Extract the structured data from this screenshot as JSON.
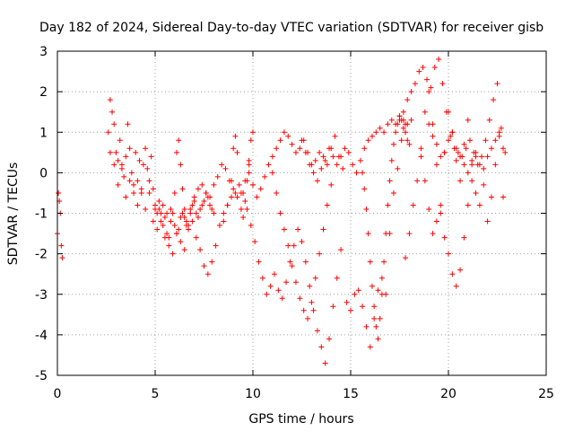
{
  "chart_data": {
    "type": "scatter",
    "title": "Day 182 of 2024, Sidereal Day-to-day VTEC variation (SDTVAR) for receiver gisb",
    "xlabel": "GPS time / hours",
    "ylabel": "SDTVAR / TECUs",
    "xlim": [
      0,
      25
    ],
    "ylim": [
      -5,
      3
    ],
    "xticks": [
      0,
      5,
      10,
      15,
      20,
      25
    ],
    "yticks": [
      -5,
      -4,
      -3,
      -2,
      -1,
      0,
      1,
      2,
      3
    ],
    "xtick_labels": [
      "0",
      "5",
      "10",
      "15",
      "20",
      "25"
    ],
    "ytick_labels": [
      "-5",
      "-4",
      "-3",
      "-2",
      "-1",
      "0",
      "1",
      "2",
      "3"
    ],
    "grid": true,
    "marker": "+",
    "color": "#ff0000",
    "series": [
      {
        "name": "s1",
        "x": [
          0.0,
          0.05,
          0.1,
          0.15,
          0.2,
          0.25
        ],
        "y": [
          -1.5,
          -0.5,
          -0.7,
          -1.0,
          -1.8,
          -2.1
        ]
      },
      {
        "name": "s2",
        "x": [
          2.6,
          2.7,
          2.8,
          2.9,
          3.0,
          3.1,
          3.2,
          3.3,
          3.4,
          3.5,
          3.6,
          3.7,
          3.8,
          3.9,
          4.0,
          4.1,
          4.2,
          4.3,
          4.4,
          4.5,
          4.6,
          4.7,
          4.8,
          4.9,
          5.0,
          5.1,
          5.2,
          5.3,
          5.4,
          5.5,
          5.6,
          5.7,
          5.8,
          5.9,
          6.0,
          6.1,
          6.2,
          6.3,
          6.4,
          6.5,
          6.6,
          6.7,
          6.8,
          6.9,
          7.0,
          7.1,
          7.2,
          7.3,
          7.4,
          7.5,
          7.6,
          7.7,
          7.8,
          7.9,
          8.0
        ],
        "y": [
          1.0,
          1.8,
          1.5,
          1.2,
          0.5,
          0.3,
          0.8,
          0.2,
          -0.1,
          0.4,
          1.2,
          0.6,
          0.0,
          -0.3,
          0.5,
          -0.2,
          0.3,
          -0.5,
          0.2,
          0.6,
          0.1,
          -0.2,
          0.4,
          -0.4,
          -0.8,
          -1.0,
          -0.9,
          -1.2,
          -1.3,
          -1.1,
          -1.5,
          -1.6,
          -1.2,
          -1.0,
          -1.3,
          -1.5,
          -1.4,
          -1.1,
          -1.0,
          -0.9,
          -1.2,
          -1.3,
          -1.0,
          -0.8,
          -0.7,
          -1.0,
          -1.1,
          -0.9,
          -0.8,
          -0.7,
          -0.5,
          -0.6,
          -0.8,
          -0.9,
          -1.0
        ]
      },
      {
        "name": "s3",
        "x": [
          2.7,
          2.9,
          3.1,
          3.3,
          3.5,
          3.7,
          3.9,
          4.1,
          4.3,
          4.5,
          4.7,
          4.9,
          5.1,
          5.3,
          5.5,
          5.7,
          5.9,
          6.1,
          6.3,
          6.5,
          6.7,
          6.9,
          7.1,
          7.3,
          7.5,
          7.7,
          7.9,
          8.1,
          8.3,
          8.5,
          8.7,
          8.9,
          9.1
        ],
        "y": [
          0.5,
          0.2,
          -0.3,
          0.1,
          -0.6,
          -0.2,
          -0.5,
          -0.8,
          -0.4,
          -0.9,
          -0.5,
          -1.2,
          -1.4,
          -1.0,
          -1.6,
          -1.8,
          -2.0,
          -1.5,
          -1.7,
          -1.9,
          -1.4,
          -1.2,
          -1.6,
          -1.9,
          -2.3,
          -2.5,
          -2.2,
          -1.8,
          -1.3,
          -1.0,
          -0.8,
          -0.6,
          -0.5
        ]
      },
      {
        "name": "s4",
        "x": [
          5.0,
          5.2,
          5.4,
          5.6,
          5.8,
          6.0,
          6.1,
          6.2,
          6.3,
          6.4,
          6.5,
          6.6,
          6.8,
          7.0,
          7.2,
          7.4,
          7.6,
          7.8,
          8.0,
          8.2,
          8.4,
          8.6,
          8.8,
          9.0,
          9.2,
          9.4,
          9.6,
          9.8,
          10.0
        ],
        "y": [
          -0.9,
          -0.7,
          -0.8,
          -1.0,
          -0.9,
          -0.5,
          0.5,
          0.8,
          0.2,
          -0.4,
          -1.1,
          -1.3,
          -0.9,
          -0.6,
          -0.4,
          -0.3,
          -0.5,
          -0.6,
          -0.3,
          -0.1,
          0.2,
          0.1,
          -0.2,
          -0.4,
          -0.6,
          -0.5,
          -0.2,
          0.0,
          -0.3
        ]
      },
      {
        "name": "s5",
        "x": [
          8.5,
          8.7,
          8.9,
          9.0,
          9.1,
          9.2,
          9.3,
          9.4,
          9.5,
          9.6,
          9.7,
          9.8,
          9.9,
          10.0
        ],
        "y": [
          -1.2,
          -0.8,
          -0.2,
          0.6,
          0.9,
          0.5,
          -0.3,
          -0.9,
          -1.1,
          -0.7,
          -0.2,
          0.3,
          0.8,
          1.0
        ]
      },
      {
        "name": "s6",
        "x": [
          9.5,
          9.7,
          9.9,
          10.1,
          10.3,
          10.5,
          10.7,
          10.9,
          11.1,
          11.3,
          11.5,
          11.7,
          11.9,
          12.1,
          12.3,
          12.5,
          12.7,
          12.9,
          13.1,
          13.3,
          13.5,
          13.7,
          13.9,
          14.1,
          14.3,
          14.5
        ],
        "y": [
          -0.5,
          -0.9,
          -1.3,
          -1.7,
          -2.2,
          -2.6,
          -3.0,
          -2.8,
          -2.5,
          -2.9,
          -3.1,
          -2.7,
          -2.2,
          -1.8,
          -1.4,
          -1.7,
          -2.2,
          -2.8,
          -3.4,
          -3.9,
          -4.3,
          -4.7,
          -4.1,
          -3.3,
          -2.6,
          -1.9
        ]
      },
      {
        "name": "s7",
        "x": [
          9.8,
          10.0,
          10.2,
          10.4,
          10.6,
          10.8,
          11.0,
          11.2,
          11.4,
          11.6,
          11.8,
          12.0,
          12.2,
          12.4,
          12.6,
          12.8,
          13.0,
          13.2,
          13.4,
          13.6,
          13.8,
          14.0,
          14.2,
          14.4,
          14.6
        ],
        "y": [
          0.2,
          -0.3,
          -0.6,
          -0.4,
          -0.1,
          0.2,
          0.4,
          0.6,
          0.8,
          1.0,
          0.9,
          0.7,
          0.5,
          0.6,
          0.8,
          0.5,
          0.2,
          0.3,
          0.5,
          0.4,
          0.2,
          0.6,
          0.9,
          0.4,
          0.1
        ]
      },
      {
        "name": "s8",
        "x": [
          11.0,
          11.2,
          11.4,
          11.6,
          11.8,
          12.0,
          12.2,
          12.4,
          12.6,
          12.8,
          13.0,
          13.2,
          13.4,
          13.6,
          13.8,
          14.0
        ],
        "y": [
          0.0,
          -0.5,
          -1.0,
          -1.4,
          -1.8,
          -2.3,
          -2.7,
          -3.1,
          -3.4,
          -3.6,
          -3.2,
          -2.6,
          -2.0,
          -1.4,
          -0.8,
          -0.3
        ]
      },
      {
        "name": "s9",
        "x": [
          12.5,
          12.7,
          12.9,
          13.1,
          13.3,
          13.5,
          13.7,
          13.9,
          14.1,
          14.3,
          14.5,
          14.7,
          14.9,
          15.1,
          15.3,
          15.5,
          15.7,
          15.9,
          16.1,
          16.3,
          16.5,
          16.7,
          16.9,
          17.1,
          17.3,
          17.5,
          17.7,
          17.9,
          18.1
        ],
        "y": [
          0.8,
          0.5,
          0.2,
          0.0,
          -0.2,
          0.1,
          0.3,
          0.6,
          0.4,
          0.2,
          0.4,
          0.6,
          0.5,
          0.2,
          0.0,
          0.3,
          0.6,
          0.8,
          0.9,
          1.0,
          1.1,
          1.0,
          1.2,
          1.3,
          1.2,
          1.4,
          1.3,
          1.2,
          1.3
        ]
      },
      {
        "name": "s10",
        "x": [
          14.8,
          15.0,
          15.2,
          15.4,
          15.6,
          15.8,
          16.0,
          16.2,
          16.4,
          16.6,
          16.8,
          17.0,
          17.2,
          17.4,
          17.6,
          17.8
        ],
        "y": [
          -3.2,
          -3.4,
          -3.0,
          -2.9,
          -3.3,
          -3.8,
          -4.3,
          -3.6,
          -2.9,
          -2.6,
          -3.0,
          -1.5,
          -0.5,
          0.1,
          0.8,
          1.2
        ]
      },
      {
        "name": "s11",
        "x": [
          15.6,
          15.7,
          15.8,
          15.9,
          16.0,
          16.1,
          16.2,
          16.3,
          16.4,
          16.5,
          16.6,
          16.7,
          16.8,
          16.9,
          17.0,
          17.1,
          17.2,
          17.3,
          17.4,
          17.5,
          17.6,
          17.7,
          17.8,
          17.9,
          18.0
        ],
        "y": [
          0.0,
          -0.4,
          -0.9,
          -1.5,
          -2.2,
          -2.8,
          -3.3,
          -3.8,
          -4.1,
          -3.6,
          -3.0,
          -2.2,
          -1.5,
          -0.8,
          -0.2,
          0.3,
          0.7,
          1.0,
          1.2,
          1.4,
          1.3,
          1.1,
          1.0,
          0.8,
          0.7
        ]
      },
      {
        "name": "s12",
        "x": [
          17.5,
          17.7,
          17.9,
          18.1,
          18.3,
          18.5,
          18.7,
          18.9,
          19.1,
          19.3,
          19.5,
          19.7,
          19.9,
          20.1,
          20.3,
          20.5,
          20.7,
          20.9,
          21.1,
          21.3,
          21.5,
          21.7,
          21.9,
          22.1,
          22.3,
          22.5,
          22.7,
          22.9
        ],
        "y": [
          1.3,
          1.5,
          1.8,
          2.0,
          2.2,
          2.5,
          2.6,
          2.3,
          2.1,
          2.6,
          2.8,
          2.2,
          1.5,
          0.9,
          0.6,
          0.5,
          0.4,
          0.6,
          0.8,
          0.5,
          0.2,
          0.4,
          0.8,
          1.3,
          1.8,
          2.2,
          1.1,
          0.5
        ]
      },
      {
        "name": "s13",
        "x": [
          17.8,
          18.0,
          18.2,
          18.4,
          18.6,
          18.8,
          19.0,
          19.2,
          19.4,
          19.6
        ],
        "y": [
          -2.1,
          -1.5,
          -0.8,
          -0.2,
          0.6,
          1.5,
          2.0,
          1.2,
          0.2,
          -0.8
        ]
      },
      {
        "name": "s14",
        "x": [
          18.6,
          18.8,
          19.0,
          19.2,
          19.4,
          19.6,
          19.8,
          20.0,
          20.2,
          20.4,
          20.6,
          20.8,
          21.0,
          21.2,
          21.4,
          21.6,
          21.8,
          22.0,
          22.2,
          22.4,
          22.6,
          22.8
        ],
        "y": [
          0.4,
          -0.2,
          -0.9,
          -1.5,
          -1.2,
          -1.0,
          0.5,
          1.5,
          1.0,
          0.3,
          -0.2,
          0.7,
          1.3,
          0.2,
          -0.5,
          -0.8,
          -0.3,
          -1.2,
          -0.6,
          0.2,
          0.9,
          -0.6
        ]
      },
      {
        "name": "s15",
        "x": [
          19.0,
          19.2,
          19.4,
          19.6,
          19.8,
          20.0,
          20.2,
          20.4,
          20.6,
          20.8,
          21.0,
          21.2,
          21.4,
          21.6,
          21.8,
          22.0,
          22.2,
          22.4,
          22.6,
          22.8
        ],
        "y": [
          1.2,
          0.9,
          0.7,
          0.4,
          0.5,
          0.8,
          1.0,
          0.6,
          0.4,
          0.2,
          0.0,
          0.3,
          0.5,
          0.2,
          0.1,
          0.4,
          0.6,
          0.8,
          1.0,
          0.6
        ]
      },
      {
        "name": "s16",
        "x": [
          19.8,
          20.0,
          20.2,
          20.4,
          20.6,
          20.8,
          21.0,
          21.2,
          21.4
        ],
        "y": [
          -1.6,
          -2.0,
          -2.5,
          -2.8,
          -2.4,
          -1.6,
          -0.8,
          -0.2,
          0.4
        ]
      }
    ]
  }
}
